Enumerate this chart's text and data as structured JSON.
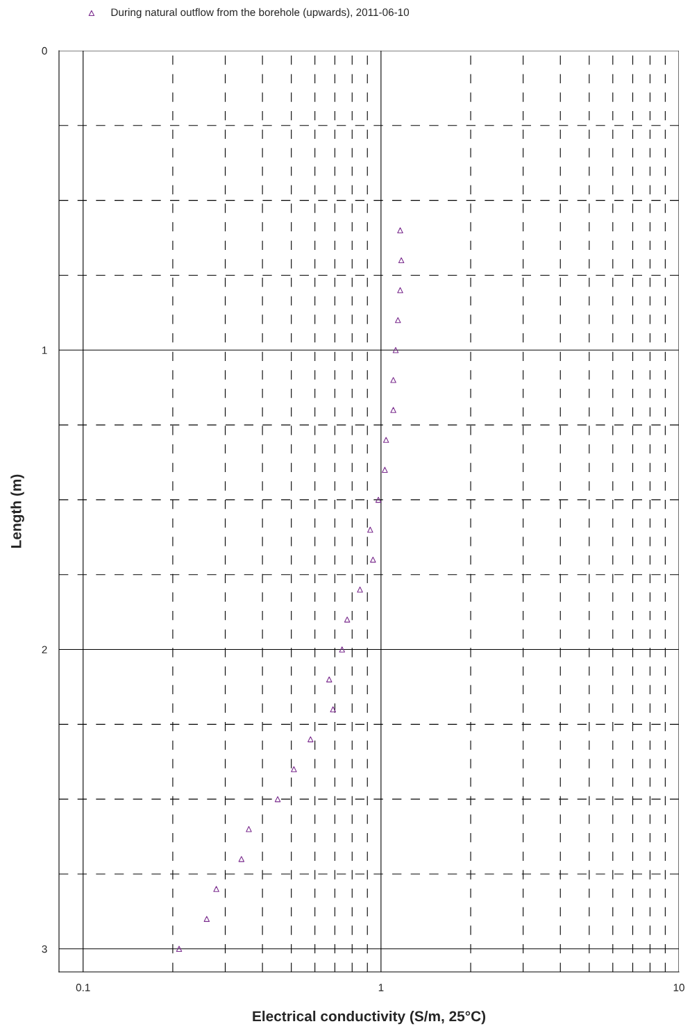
{
  "chart_data": {
    "type": "scatter",
    "xlabel": "Electrical conductivity (S/m, 25°C)",
    "ylabel": "Length (m)",
    "log": "x",
    "xlim": [
      0.083,
      10
    ],
    "ylim": [
      3.077,
      0
    ],
    "xticks": [
      {
        "value": 0.1,
        "label": "0.1"
      },
      1,
      10
    ],
    "yticks": [
      0,
      1,
      2,
      3
    ],
    "grid": true,
    "legend": "top left",
    "marker": "triangle",
    "series": [
      {
        "name": "During natural outflow from the borehole (upwards), 2011-06-10",
        "color": "#7b2d8e",
        "x": [
          1.16,
          1.17,
          1.16,
          1.14,
          1.12,
          1.1,
          1.1,
          1.04,
          1.03,
          0.98,
          0.92,
          0.94,
          0.85,
          0.77,
          0.74,
          0.67,
          0.69,
          0.58,
          0.51,
          0.45,
          0.36,
          0.34,
          0.28,
          0.26,
          0.21
        ],
        "values": [
          0.6,
          0.7,
          0.8,
          0.9,
          1.0,
          1.1,
          1.2,
          1.3,
          1.4,
          1.5,
          1.6,
          1.7,
          1.8,
          1.9,
          2.0,
          2.1,
          2.2,
          2.3,
          2.4,
          2.5,
          2.6,
          2.7,
          2.8,
          2.9,
          3.0
        ]
      }
    ]
  }
}
